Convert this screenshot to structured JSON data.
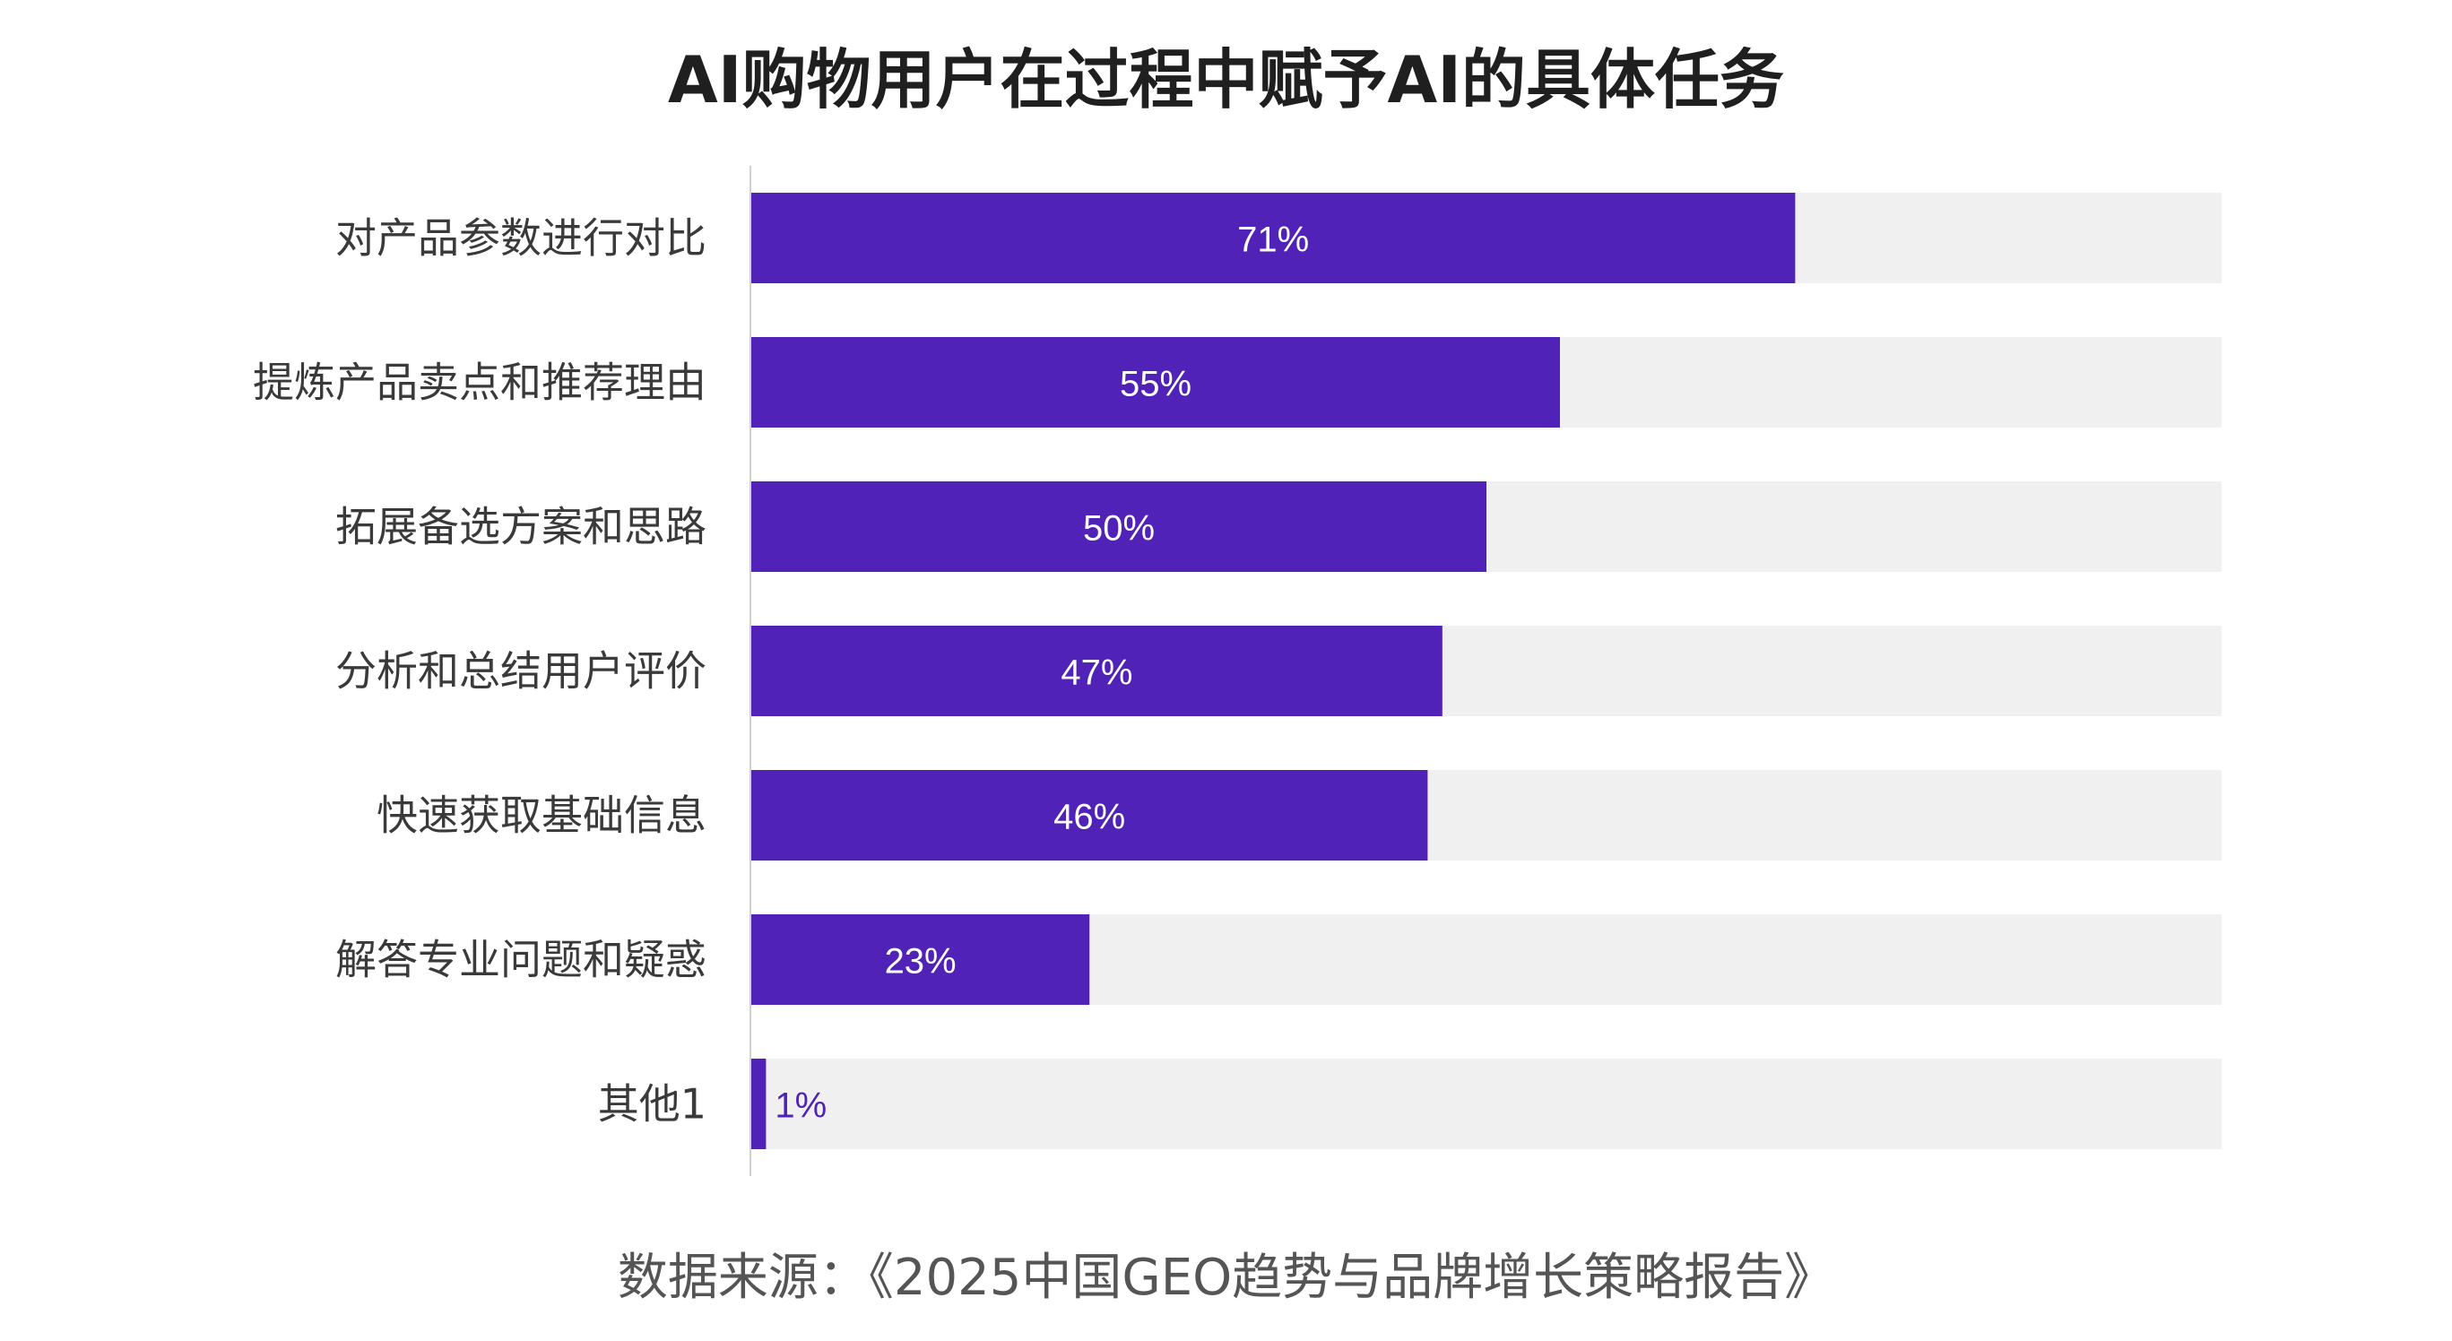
{
  "chart_data": {
    "type": "bar",
    "orientation": "horizontal",
    "title": "AI购物用户在过程中赋予AI的具体任务",
    "categories": [
      "对产品参数进行对比",
      "提炼产品卖点和推荐理由",
      "拓展备选方案和思路",
      "分析和总结用户评价",
      "快速获取基础信息",
      "解答专业问题和疑惑",
      "其他1"
    ],
    "values": [
      71,
      55,
      50,
      47,
      46,
      23,
      1
    ],
    "data_labels": [
      "71%",
      "55%",
      "50%",
      "47%",
      "46%",
      "23%",
      "1%"
    ],
    "unit": "%",
    "xlim": [
      0,
      100
    ],
    "grid": false,
    "legend": "none",
    "bar_color": "#5022b8",
    "track_color": "#f0f0f0"
  },
  "source": "数据来源：《2025中国GEO趋势与品牌增长策略报告》"
}
